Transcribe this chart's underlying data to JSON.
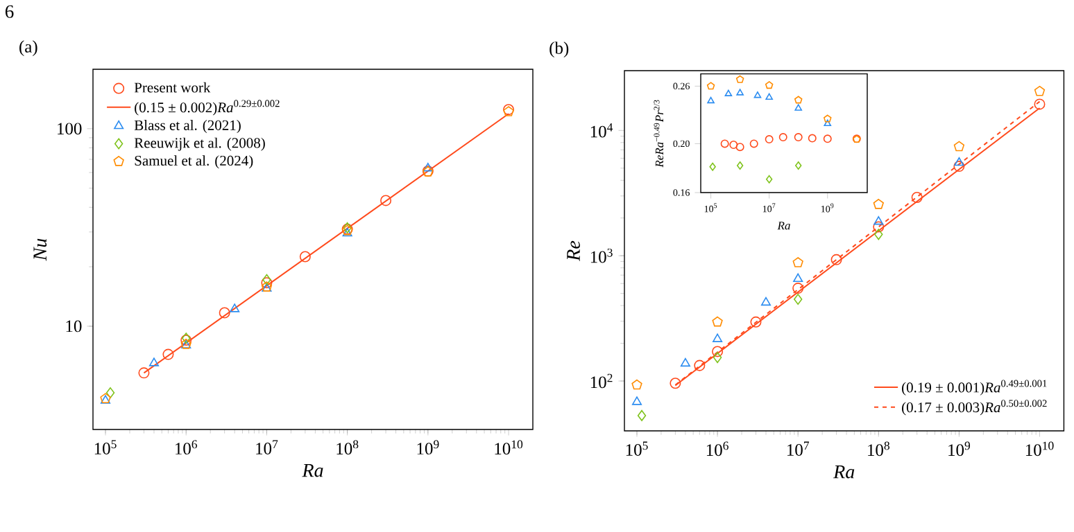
{
  "chart_data": [
    {
      "type": "scatter",
      "title": "(a)",
      "xlabel": "Ra",
      "ylabel": "Nu",
      "annotations": [
        "6"
      ],
      "log": "xy",
      "legend": "top left",
      "grid": false,
      "xlim": [
        70000,
        20000000000
      ],
      "ylim": [
        3,
        200
      ],
      "xticks": [
        {
          "value": 100000.0,
          "label": "10$^{5}$"
        },
        {
          "value": 1000000.0,
          "label": "10$^{6}$"
        },
        {
          "value": 10000000.0,
          "label": "10$^{7}$"
        },
        {
          "value": 100000000.0,
          "label": "10$^{8}$"
        },
        {
          "value": 1000000000.0,
          "label": "10$^{9}$"
        },
        {
          "value": 10000000000.0,
          "label": "10$^{10}$"
        }
      ],
      "yticks": [
        10,
        100
      ],
      "series": [
        {
          "name": "Present work",
          "color": "#ff4a1c",
          "marker": "circle",
          "x": [
            300000.0,
            600000.0,
            1000000.0,
            3000000.0,
            10000000.0,
            30000000.0,
            100000000.0,
            300000000.0,
            1000000000.0,
            10000000000.0
          ],
          "values": [
            5.8,
            7.2,
            8.5,
            11.7,
            16.6,
            22.5,
            31,
            43.3,
            61,
            125
          ]
        },
        {
          "name": "(0.15 ± 0.002)*Ra*$^{0.29±0.002}$",
          "type": "line",
          "color": "#ff4a1c",
          "marker": "none",
          "line_style": "solid",
          "x": [
            300000.0,
            10000000000.0
          ],
          "values": [
            5.8,
            119
          ]
        },
        {
          "name": "Blass et al. (2021)",
          "color": "#2b8cf0",
          "marker": "triangle",
          "x": [
            100000.0,
            400000.0,
            1000000.0,
            4000000.0,
            10000000.0,
            100000000.0,
            1000000000.0
          ],
          "values": [
            4.2,
            6.5,
            8.0,
            12.2,
            15.5,
            29.5,
            63
          ]
        },
        {
          "name": "Reeuwijk et al. (2008)",
          "color": "#7fc31c",
          "marker": "diamond",
          "x": [
            115000.0,
            1000000.0,
            10000000.0,
            100000000.0
          ],
          "values": [
            4.6,
            8.7,
            17.2,
            31.5
          ]
        },
        {
          "name": "Samuel et al. (2024)",
          "color": "#ff8c00",
          "x": [
            100000.0,
            1000000.0,
            10000000.0,
            100000000.0,
            1000000000.0,
            10000000000.0
          ],
          "values": [
            4.3,
            8.1,
            15.8,
            30.5,
            60.5,
            122
          ]
        }
      ]
    },
    {
      "type": "scatter",
      "title": "(b)",
      "xlabel": "Ra",
      "ylabel": "Re",
      "log": "xy",
      "legend": "bottom right",
      "grid": false,
      "xlim": [
        70000,
        20000000000
      ],
      "ylim": [
        40,
        30000
      ],
      "xticks": [
        {
          "value": 100000.0,
          "label": "10$^{5}$"
        },
        {
          "value": 1000000.0,
          "label": "10$^{6}$"
        },
        {
          "value": 10000000.0,
          "label": "10$^{7}$"
        },
        {
          "value": 100000000.0,
          "label": "10$^{8}$"
        },
        {
          "value": 1000000000.0,
          "label": "10$^{9}$"
        },
        {
          "value": 10000000000.0,
          "label": "10$^{10}$"
        }
      ],
      "yticks": [
        {
          "value": 100,
          "label": "10$^{2}$"
        },
        {
          "value": 1000,
          "label": "10$^{3}$"
        },
        {
          "value": 10000,
          "label": "10$^{4}$"
        }
      ],
      "series": [
        {
          "color": "#ff4a1c",
          "marker": "circle",
          "x": [
            300000.0,
            600000.0,
            1000000.0,
            3000000.0,
            10000000.0,
            30000000.0,
            100000000.0,
            300000000.0,
            1000000000.0,
            10000000000.0
          ],
          "values": [
            96,
            133,
            172,
            296,
            550,
            930,
            1700,
            2920,
            5170,
            16200
          ]
        },
        {
          "color": "#2b8cf0",
          "marker": "triangle",
          "x": [
            100000.0,
            400000.0,
            1000000.0,
            4000000.0,
            10000000.0,
            100000000.0,
            1000000000.0
          ],
          "values": [
            68,
            138,
            216,
            423,
            653,
            1870,
            5520
          ]
        },
        {
          "color": "#7fc31c",
          "marker": "diamond",
          "x": [
            115000.0,
            1000000.0,
            10000000.0,
            100000000.0
          ],
          "values": [
            53,
            154,
            449,
            1480
          ]
        },
        {
          "color": "#ff8c00",
          "x": [
            100000.0,
            1000000.0,
            10000000.0,
            100000000.0,
            1000000000.0,
            10000000000.0
          ],
          "values": [
            93,
            296,
            880,
            2570,
            7430,
            20500
          ]
        },
        {
          "name": "(0.19 ± 0.001)*Ra*$^{0.49±0.001}$",
          "type": "line",
          "color": "#ff4a1c",
          "marker": "none",
          "line_style": "solid",
          "x": [
            300000.0,
            10000000000.0
          ],
          "values": [
            92,
            15100
          ]
        },
        {
          "name": "(0.17 ± 0.003)*Ra*$^{0.50±0.002}$",
          "type": "line",
          "color": "#ff4a1c",
          "marker": "none",
          "line_style": "dashed",
          "x": [
            300000.0,
            10000000000.0
          ],
          "values": [
            93,
            17000
          ]
        }
      ]
    },
    {
      "type": "scatter",
      "xlabel": "Ra",
      "ylabel": "*ReRa*$^{−0.49}$*Pr*$^{2/3}$",
      "log": "xy",
      "grid": false,
      "xlim": [
        45000,
        23000000000
      ],
      "ylim": [
        0.16,
        0.275
      ],
      "xticks": [
        {
          "value": 100000.0,
          "label": "10$^{5}$"
        },
        {
          "value": 10000000.0,
          "label": "10$^{7}$"
        },
        {
          "value": 1000000000.0,
          "label": "10$^{9}$"
        }
      ],
      "yticks": [
        0.16,
        {
          "value": 0.2,
          "label": "0.20"
        },
        0.26
      ],
      "series": [
        {
          "color": "#ff4a1c",
          "marker": "circle",
          "x": [
            300000.0,
            600000.0,
            1000000.0,
            3000000.0,
            10000000.0,
            30000000.0,
            100000000.0,
            300000000.0,
            1000000000.0,
            10000000000.0
          ],
          "values": [
            0.2,
            0.199,
            0.197,
            0.2,
            0.204,
            0.206,
            0.206,
            0.205,
            0.2045,
            0.2045
          ]
        },
        {
          "color": "#2b8cf0",
          "marker": "triangle",
          "x": [
            100000.0,
            400000.0,
            1000000.0,
            4000000.0,
            10000000.0,
            100000000.0,
            1000000000.0
          ],
          "values": [
            0.243,
            0.251,
            0.252,
            0.249,
            0.247,
            0.235,
            0.219
          ]
        },
        {
          "color": "#7fc31c",
          "marker": "diamond",
          "x": [
            115000.0,
            1000000.0,
            10000000.0,
            100000000.0
          ],
          "values": [
            0.18,
            0.181,
            0.17,
            0.181
          ]
        },
        {
          "color": "#ff8c00",
          "x": [
            100000.0,
            1000000.0,
            10000000.0,
            100000000.0,
            1000000000.0,
            10000000000.0
          ],
          "values": [
            0.26,
            0.268,
            0.261,
            0.244,
            0.224,
            0.204
          ]
        }
      ]
    }
  ]
}
